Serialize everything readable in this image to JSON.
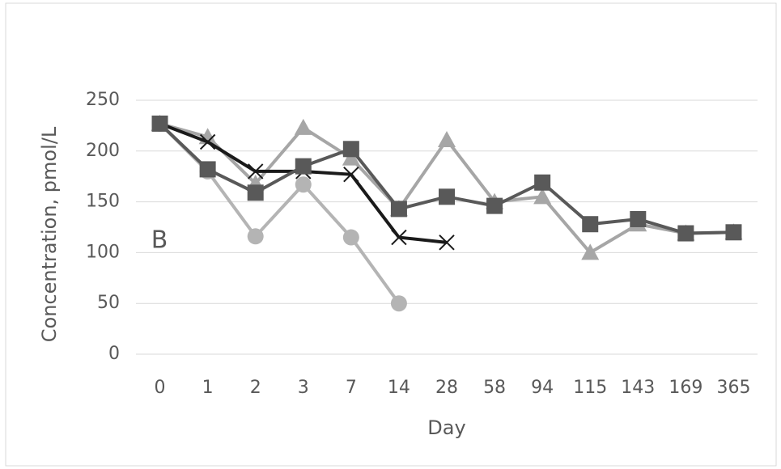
{
  "chart_data": {
    "type": "line",
    "x_label": "Day",
    "y_label": "Concentration, pmol/L",
    "annotation": "B",
    "categories": [
      "0",
      "1",
      "2",
      "3",
      "7",
      "14",
      "28",
      "58",
      "94",
      "115",
      "143",
      "169",
      "365"
    ],
    "series": [
      {
        "color": "#b4b4b4",
        "marker": "circle",
        "values": [
          227,
          180,
          116,
          167,
          115,
          50,
          null,
          null,
          null,
          null,
          null,
          null,
          null
        ]
      },
      {
        "color": "#a6a6a6",
        "marker": "triangle",
        "values": [
          227,
          214,
          168,
          223,
          193,
          143,
          211,
          150,
          155,
          100,
          128,
          119,
          120
        ]
      },
      {
        "color": "#1a1a1a",
        "marker": "x",
        "values": [
          227,
          209,
          180,
          180,
          177,
          115,
          110,
          null,
          null,
          null,
          null,
          null,
          null
        ]
      },
      {
        "color": "#595959",
        "marker": "square",
        "values": [
          227,
          182,
          159,
          185,
          202,
          143,
          155,
          146,
          169,
          128,
          133,
          119,
          120
        ]
      }
    ],
    "ylim": [
      0,
      250
    ],
    "yticks": [
      0,
      50,
      100,
      150,
      200,
      250
    ],
    "grid": true
  }
}
